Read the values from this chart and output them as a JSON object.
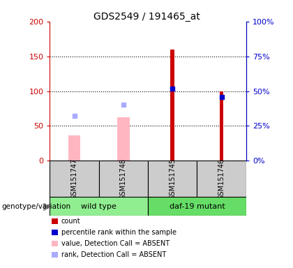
{
  "title": "GDS2549 / 191465_at",
  "samples": [
    "GSM151747",
    "GSM151748",
    "GSM151745",
    "GSM151746"
  ],
  "count_values": [
    0,
    0,
    160,
    100
  ],
  "count_color": "#cc0000",
  "percentile_rank_values": [
    0,
    0,
    52,
    46
  ],
  "percentile_rank_color": "#0000cc",
  "value_absent_values": [
    36,
    63,
    0,
    0
  ],
  "value_absent_color": "#ffb6c1",
  "rank_absent_values": [
    65,
    81,
    0,
    0
  ],
  "rank_absent_color": "#aaaaff",
  "ylim_left": [
    0,
    200
  ],
  "ylim_right": [
    0,
    100
  ],
  "yticks_left": [
    0,
    50,
    100,
    150,
    200
  ],
  "ytick_labels_left": [
    "0",
    "50",
    "100",
    "150",
    "200"
  ],
  "yticks_right": [
    0,
    25,
    50,
    75,
    100
  ],
  "ytick_labels_right": [
    "0%",
    "25%",
    "50%",
    "75%",
    "100%"
  ],
  "legend_items": [
    {
      "label": "count",
      "color": "#cc0000"
    },
    {
      "label": "percentile rank within the sample",
      "color": "#0000cc"
    },
    {
      "label": "value, Detection Call = ABSENT",
      "color": "#ffb6c1"
    },
    {
      "label": "rank, Detection Call = ABSENT",
      "color": "#aaaaff"
    }
  ],
  "left_label_color": "#cc0000",
  "right_label_color": "#0000cc",
  "genotype_label": "genotype/variation",
  "sample_area_color": "#cccccc",
  "arrow_color": "#999999"
}
